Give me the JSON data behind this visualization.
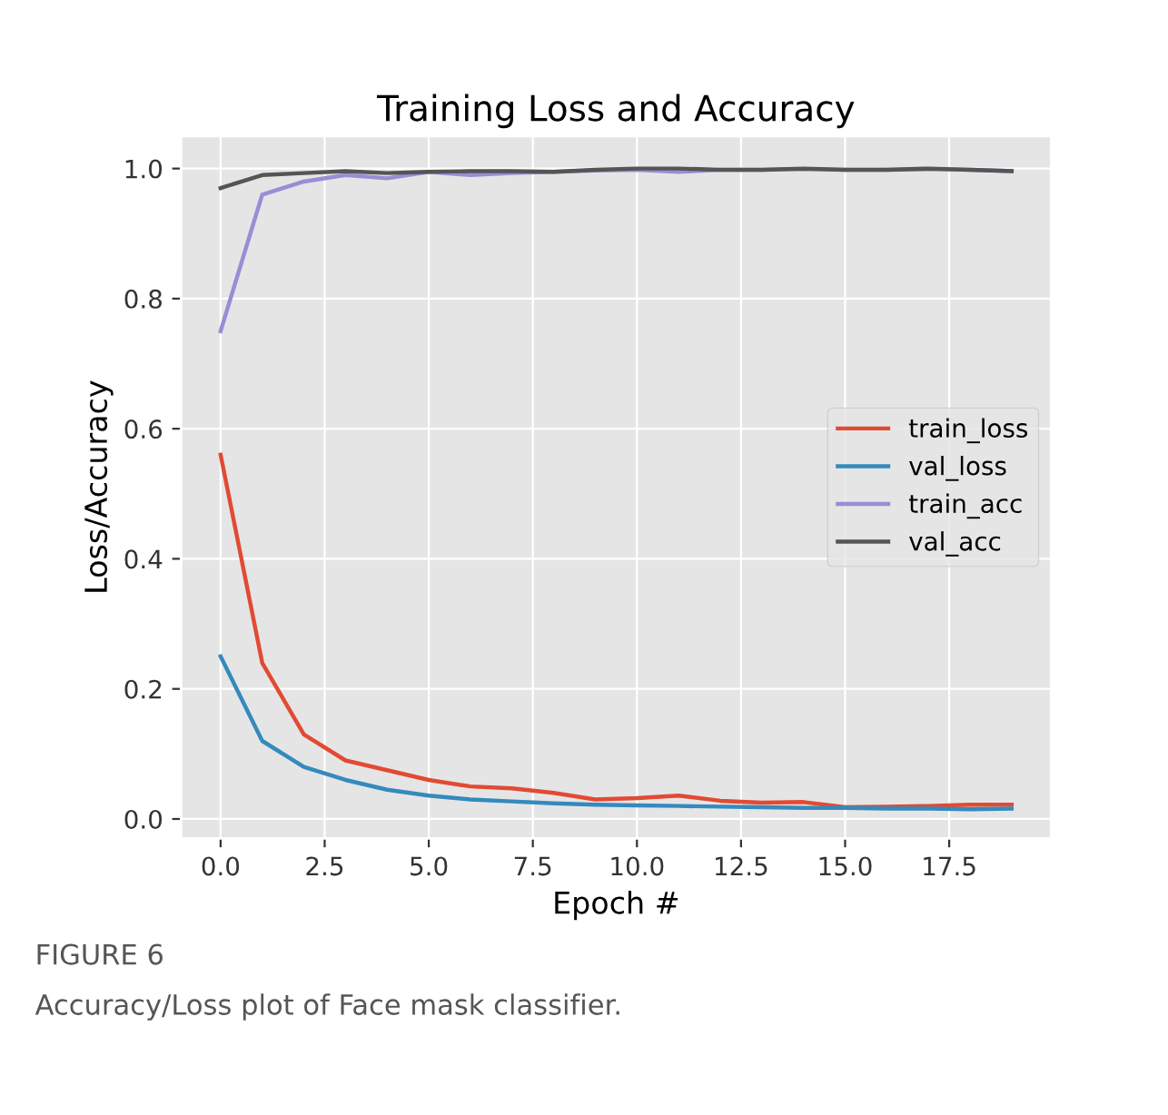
{
  "chart_data": {
    "type": "line",
    "title": "Training Loss and Accuracy",
    "xlabel": "Epoch #",
    "ylabel": "Loss/Accuracy",
    "x": [
      0,
      1,
      2,
      3,
      4,
      5,
      6,
      7,
      8,
      9,
      10,
      11,
      12,
      13,
      14,
      15,
      16,
      17,
      18,
      19
    ],
    "series": [
      {
        "name": "train_loss",
        "color": "#e24a33",
        "values": [
          0.56,
          0.24,
          0.13,
          0.09,
          0.075,
          0.06,
          0.05,
          0.047,
          0.04,
          0.03,
          0.032,
          0.036,
          0.028,
          0.025,
          0.026,
          0.018,
          0.019,
          0.02,
          0.022,
          0.022
        ]
      },
      {
        "name": "val_loss",
        "color": "#348abd",
        "values": [
          0.25,
          0.12,
          0.08,
          0.06,
          0.045,
          0.036,
          0.03,
          0.027,
          0.024,
          0.022,
          0.021,
          0.02,
          0.019,
          0.018,
          0.017,
          0.017,
          0.016,
          0.016,
          0.015,
          0.016
        ]
      },
      {
        "name": "train_acc",
        "color": "#988ed5",
        "values": [
          0.75,
          0.96,
          0.98,
          0.99,
          0.985,
          0.995,
          0.99,
          0.993,
          0.995,
          0.997,
          0.998,
          0.995,
          0.998,
          0.998,
          0.999,
          0.998,
          0.998,
          0.999,
          0.998,
          0.996
        ]
      },
      {
        "name": "val_acc",
        "color": "#555555",
        "values": [
          0.97,
          0.99,
          0.993,
          0.996,
          0.993,
          0.995,
          0.996,
          0.996,
          0.995,
          0.998,
          1.0,
          1.0,
          0.998,
          0.998,
          1.0,
          0.998,
          0.998,
          1.0,
          0.998,
          0.996
        ]
      }
    ],
    "xlim": [
      -0.95,
      19.95
    ],
    "ylim": [
      -0.03,
      1.05
    ],
    "xticks": [
      {
        "value": 0,
        "label": "0.0"
      },
      {
        "value": 2.5,
        "label": "2.5"
      },
      {
        "value": 5,
        "label": "5.0"
      },
      {
        "value": 7.5,
        "label": "7.5"
      },
      {
        "value": 10,
        "label": "10.0"
      },
      {
        "value": 12.5,
        "label": "12.5"
      },
      {
        "value": 15,
        "label": "15.0"
      },
      {
        "value": 17.5,
        "label": "17.5"
      }
    ],
    "yticks": [
      {
        "value": 0,
        "label": "0.0"
      },
      {
        "value": 0.2,
        "label": "0.2"
      },
      {
        "value": 0.4,
        "label": "0.4"
      },
      {
        "value": 0.6,
        "label": "0.6"
      },
      {
        "value": 0.8,
        "label": "0.8"
      },
      {
        "value": 1,
        "label": "1.0"
      }
    ],
    "grid": true,
    "legend": "right",
    "marker": "none",
    "line_style": "solid",
    "annotations": [
      "FIGURE 6",
      "Accuracy/Loss plot of Face mask classifier."
    ]
  }
}
